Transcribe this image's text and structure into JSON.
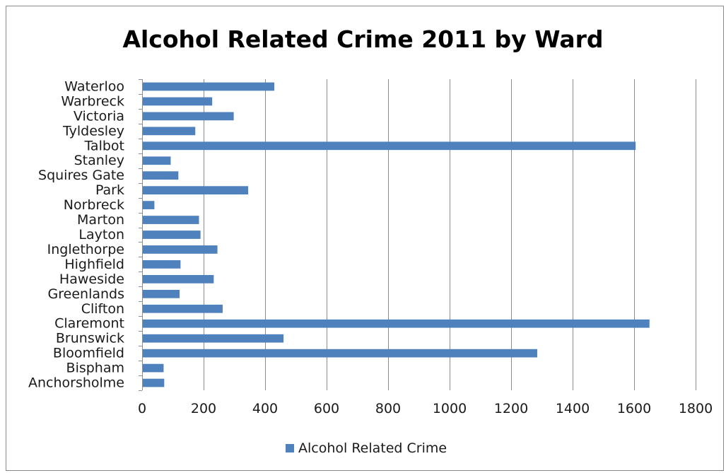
{
  "chart_data": {
    "type": "bar",
    "orientation": "horizontal",
    "title": "Alcohol Related Crime 2011 by Ward",
    "xlabel": "",
    "ylabel": "",
    "categories": [
      "Waterloo",
      "Warbreck",
      "Victoria",
      "Tyldesley",
      "Talbot",
      "Stanley",
      "Squires Gate",
      "Park",
      "Norbreck",
      "Marton",
      "Layton",
      "Inglethorpe",
      "Highfield",
      "Haweside",
      "Greenlands",
      "Clifton",
      "Claremont",
      "Brunswick",
      "Bloomfield",
      "Bispham",
      "Anchorsholme"
    ],
    "series": [
      {
        "name": "Alcohol Related Crime",
        "values": [
          430,
          228,
          298,
          173,
          1605,
          93,
          118,
          345,
          40,
          185,
          190,
          245,
          125,
          233,
          122,
          262,
          1650,
          460,
          1285,
          70,
          72
        ]
      }
    ],
    "xlim": [
      0,
      1800
    ],
    "x_ticks": [
      "0",
      "200",
      "400",
      "600",
      "800",
      "1000",
      "1200",
      "1400",
      "1600",
      "1800"
    ],
    "grid": "vertical major gridlines",
    "legend_position": "bottom",
    "colors": {
      "bar": "#4f81bd",
      "grid": "#8c8c8c",
      "axis": "#8c8c8c",
      "text": "#1a1a1a"
    }
  }
}
